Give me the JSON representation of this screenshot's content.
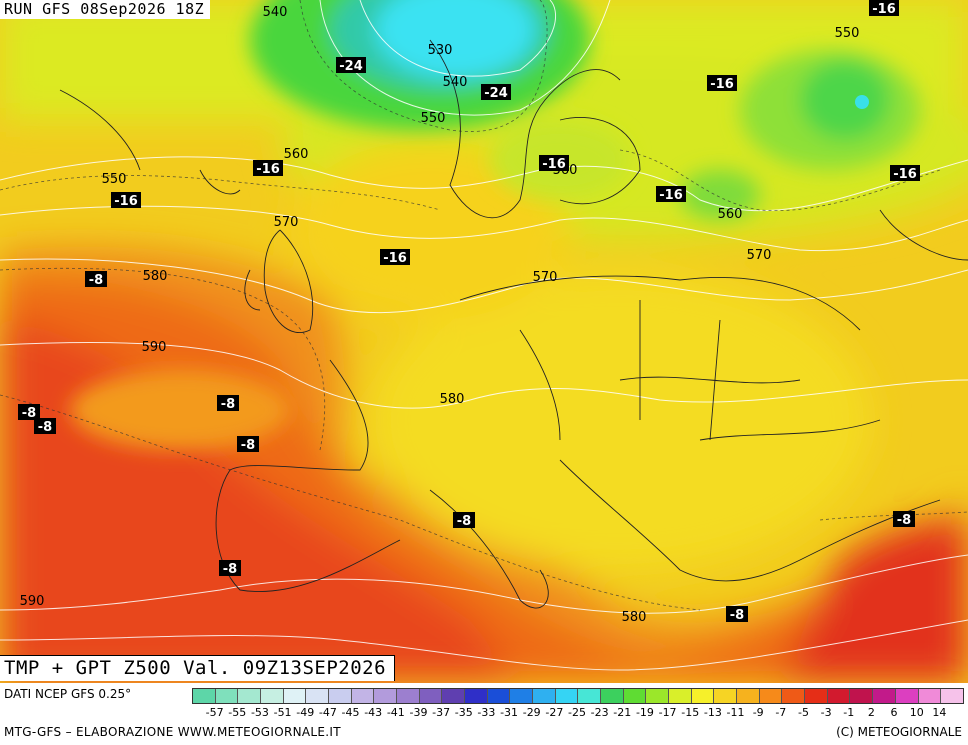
{
  "header": {
    "run_label": "RUN GFS 08Sep2026 18Z"
  },
  "footer": {
    "title": "TMP + GPT Z500 Val. 09Z13SEP2026",
    "source": "DATI NCEP GFS 0.25°",
    "credit": "MTG-GFS – ELABORAZIONE WWW.METEOGIORNALE.IT",
    "copyright": "(C) METEOGIORNALE"
  },
  "gpt_labels": [
    "540",
    "530",
    "540",
    "550",
    "550",
    "560",
    "550",
    "560",
    "560",
    "570",
    "570",
    "580",
    "570",
    "590",
    "580",
    "590",
    "580"
  ],
  "tmp_labels": [
    "-16",
    "-24",
    "-24",
    "-16",
    "-16",
    "-16",
    "-16",
    "-16",
    "-16",
    "-16",
    "-8",
    "-8",
    "-8",
    "-8",
    "-8",
    "-8",
    "-8",
    "-8",
    "-8"
  ],
  "scale": {
    "ticks": [
      "-57",
      "-55",
      "-53",
      "-51",
      "-49",
      "-47",
      "-45",
      "-43",
      "-41",
      "-39",
      "-37",
      "-35",
      "-33",
      "-31",
      "-29",
      "-27",
      "-25",
      "-23",
      "-21",
      "-19",
      "-17",
      "-15",
      "-13",
      "-11",
      "-9",
      "-7",
      "-5",
      "-3",
      "-1",
      "2",
      "6",
      "10",
      "14"
    ],
    "colors": [
      "#5dd6a8",
      "#7fe0bc",
      "#a4e8d0",
      "#c6efe2",
      "#dff2f6",
      "#d9e3f4",
      "#c9cdef",
      "#c2b4e6",
      "#b29bdc",
      "#9c7fcf",
      "#7f5fbf",
      "#5f3fb0",
      "#2f2fc8",
      "#1a4ed8",
      "#1f7fe6",
      "#2fb0f0",
      "#35d4f4",
      "#47e6d6",
      "#3cd05e",
      "#5fdc33",
      "#9be72a",
      "#d9ef2a",
      "#f6f02a",
      "#f6d424",
      "#f6b21e",
      "#f68a1a",
      "#ef5a17",
      "#e52e17",
      "#d21a2e",
      "#c0134d",
      "#c21a8a",
      "#dc3fc0",
      "#f08ad8",
      "#f6c2ea"
    ]
  },
  "colors": {
    "ocean_orange": "#f07a12",
    "land_yellow": "#f2d81c",
    "cold_green": "#3fd24a",
    "cold_cyan": "#47f0f0"
  }
}
